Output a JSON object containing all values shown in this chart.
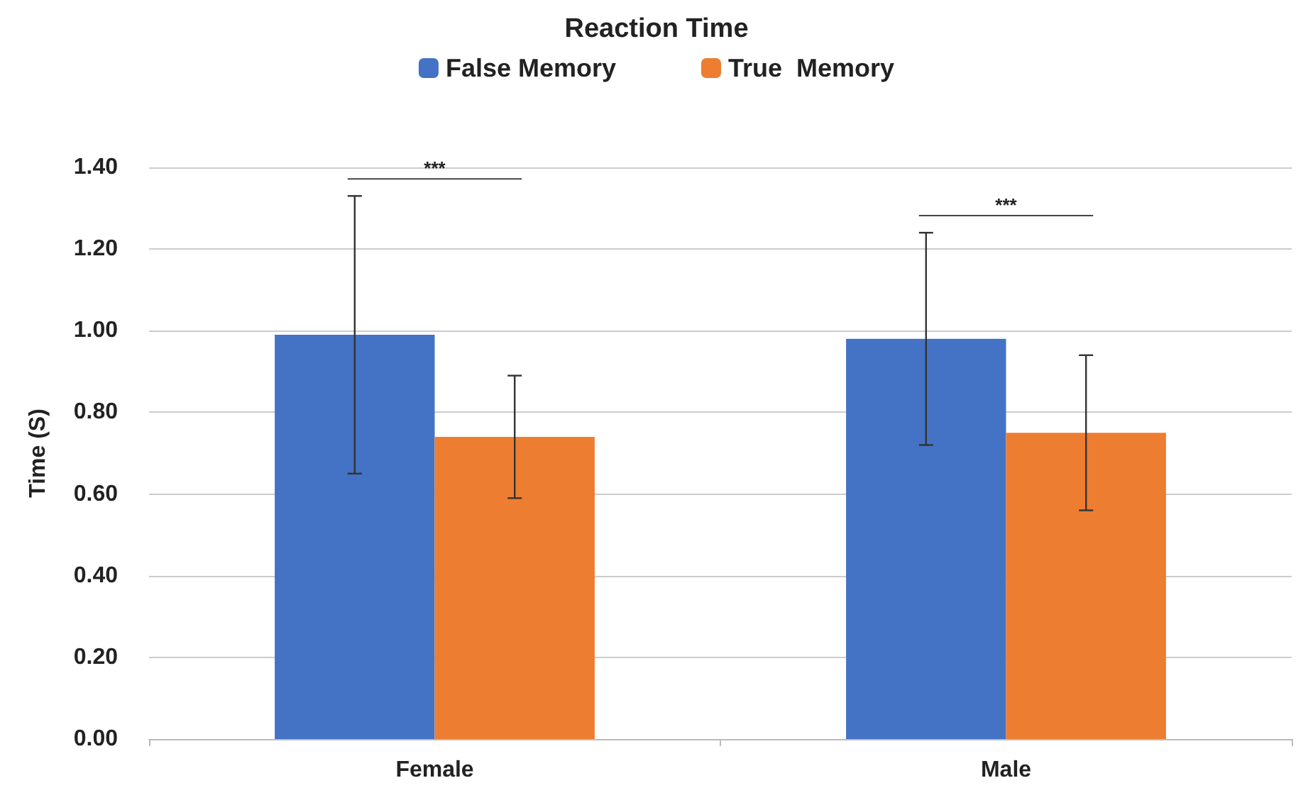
{
  "chart_data": {
    "type": "bar",
    "title": "Reaction Time",
    "ylabel": "Time (S)",
    "categories": [
      "Female",
      "Male"
    ],
    "series": [
      {
        "name": "False Memory",
        "color": "#4472c4",
        "values": [
          0.99,
          0.98
        ],
        "errors": [
          [
            0.65,
            1.33
          ],
          [
            0.72,
            1.24
          ]
        ]
      },
      {
        "name": "True  Memory",
        "color": "#ed7d31",
        "values": [
          0.74,
          0.75
        ],
        "errors": [
          [
            0.59,
            0.89
          ],
          [
            0.56,
            0.94
          ]
        ]
      }
    ],
    "ylim": [
      0,
      1.4
    ],
    "yticks": [
      {
        "value": 0,
        "label": "0.00"
      },
      {
        "value": 0.2,
        "label": "0.20"
      },
      {
        "value": 0.4,
        "label": "0.40"
      },
      {
        "value": 0.6,
        "label": "0.60"
      },
      {
        "value": 0.8,
        "label": "0.80"
      },
      {
        "value": 1,
        "label": "1.00"
      },
      {
        "value": 1.2,
        "label": "1.20"
      },
      {
        "value": 1.4,
        "label": "1.40"
      }
    ],
    "grid": "y",
    "legend": "top",
    "annotations": [
      "***",
      "***"
    ]
  }
}
